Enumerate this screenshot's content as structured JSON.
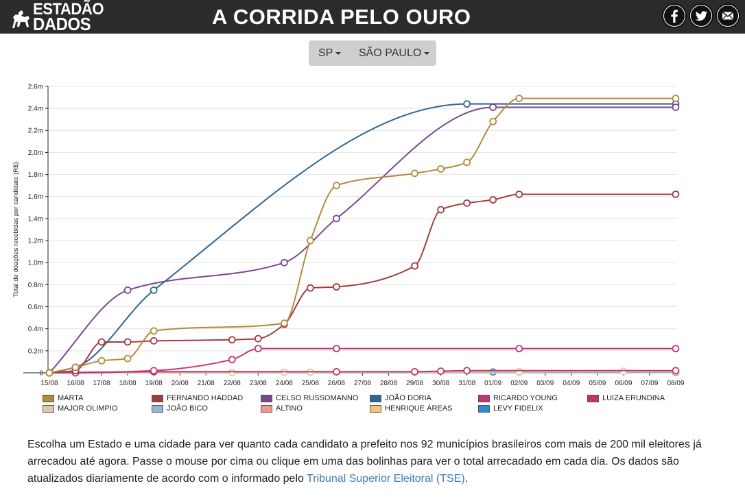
{
  "header": {
    "logo_line1": "ESTADÃO",
    "logo_line2": "DADOS",
    "title": "A CORRIDA PELO OURO",
    "social": [
      "facebook-icon",
      "twitter-icon",
      "email-icon"
    ]
  },
  "selectors": {
    "state": "SP",
    "city": "SÃO PAULO"
  },
  "colors": {
    "header_bg": "#2b2b2d",
    "link": "#3a7ab8"
  },
  "chart_data": {
    "type": "line",
    "ylabel": "Total de doações recebidas por candidato (R$)",
    "xlabel": "",
    "x": [
      "15/08",
      "16/08",
      "17/08",
      "18/08",
      "19/08",
      "20/08",
      "21/08",
      "22/08",
      "23/08",
      "24/08",
      "25/08",
      "26/08",
      "27/08",
      "28/08",
      "29/08",
      "30/08",
      "31/08",
      "01/09",
      "02/09",
      "03/09",
      "04/09",
      "05/09",
      "06/09",
      "07/09",
      "08/09"
    ],
    "yticks": [
      0,
      0.2,
      0.4,
      0.6,
      0.8,
      1.0,
      1.2,
      1.4,
      1.6,
      1.8,
      2.0,
      2.2,
      2.4,
      2.6
    ],
    "ytick_labels": [
      "0",
      "0.2m",
      "0.4m",
      "0.6m",
      "0.8m",
      "1.0m",
      "1.2m",
      "1.4m",
      "1.6m",
      "1.8m",
      "2.0m",
      "2.2m",
      "2.4m",
      "2.6m"
    ],
    "ylim": [
      0,
      2.6
    ],
    "y_unit": "millions R$",
    "grid": true,
    "legend": "bottom",
    "series": [
      {
        "name": "MARTA",
        "color": "#b5893a",
        "points": [
          [
            0,
            0
          ],
          [
            1,
            0.05
          ],
          [
            2,
            0.11
          ],
          [
            3,
            0.13
          ],
          [
            4,
            0.38
          ],
          [
            9,
            0.45
          ],
          [
            10,
            1.2
          ],
          [
            11,
            1.7
          ],
          [
            14,
            1.81
          ],
          [
            15,
            1.85
          ],
          [
            16,
            1.91
          ],
          [
            17,
            2.28
          ],
          [
            18,
            2.49
          ],
          [
            24,
            2.49
          ]
        ]
      },
      {
        "name": "FERNANDO HADDAD",
        "color": "#a23c3f",
        "points": [
          [
            0,
            0
          ],
          [
            1,
            0.02
          ],
          [
            2,
            0.28
          ],
          [
            3,
            0.28
          ],
          [
            4,
            0.29
          ],
          [
            7,
            0.3
          ],
          [
            8,
            0.31
          ],
          [
            9,
            0.44
          ],
          [
            10,
            0.77
          ],
          [
            11,
            0.78
          ],
          [
            14,
            0.97
          ],
          [
            15,
            1.48
          ],
          [
            16,
            1.54
          ],
          [
            17,
            1.57
          ],
          [
            18,
            1.62
          ],
          [
            24,
            1.62
          ]
        ]
      },
      {
        "name": "CELSO RUSSOMANNO",
        "color": "#7a4791",
        "points": [
          [
            0,
            0
          ],
          [
            3,
            0.75
          ],
          [
            9,
            1.0
          ],
          [
            11,
            1.4
          ],
          [
            17,
            2.41
          ],
          [
            24,
            2.41
          ]
        ]
      },
      {
        "name": "JOÃO DORIA",
        "color": "#2f6690",
        "points": [
          [
            0,
            0
          ],
          [
            1,
            0.05
          ],
          [
            4,
            0.75
          ],
          [
            16,
            2.44
          ],
          [
            24,
            2.44
          ]
        ]
      },
      {
        "name": "RICARDO YOUNG",
        "color": "#c2357a",
        "points": [
          [
            0,
            0
          ],
          [
            1,
            0
          ],
          [
            4,
            0.02
          ],
          [
            7,
            0.12
          ],
          [
            8,
            0.22
          ],
          [
            11,
            0.22
          ],
          [
            18,
            0.22
          ],
          [
            24,
            0.22
          ]
        ]
      },
      {
        "name": "LUIZA ERUNDINA",
        "color": "#c7345e",
        "points": [
          [
            0,
            0
          ],
          [
            1,
            0.005
          ],
          [
            4,
            0.01
          ],
          [
            11,
            0.01
          ],
          [
            14,
            0.01
          ],
          [
            15,
            0.015
          ],
          [
            16,
            0.02
          ],
          [
            24,
            0.02
          ]
        ]
      },
      {
        "name": "MAJOR OLIMPIO",
        "color": "#e2c9a6",
        "points": [
          [
            0,
            0
          ],
          [
            7,
            0.003
          ],
          [
            9,
            0.005
          ],
          [
            10,
            0.006
          ],
          [
            18,
            0.01
          ],
          [
            22,
            0.015
          ],
          [
            24,
            0.015
          ]
        ]
      },
      {
        "name": "JOÃO BICO",
        "color": "#90b8d8",
        "points": [
          [
            0,
            0
          ],
          [
            24,
            0.004
          ]
        ]
      },
      {
        "name": "ALTINO",
        "color": "#f2978a",
        "points": [
          [
            0,
            0
          ],
          [
            24,
            0.003
          ]
        ]
      },
      {
        "name": "HENRIQUE ÁREAS",
        "color": "#f6c277",
        "points": [
          [
            0,
            0
          ],
          [
            24,
            0.002
          ]
        ]
      },
      {
        "name": "LEVY FIDELIX",
        "color": "#2b8ecf",
        "points": [
          [
            0,
            0
          ],
          [
            1,
            0.003
          ],
          [
            17,
            0.008
          ],
          [
            18,
            0.008
          ],
          [
            24,
            0.008
          ]
        ]
      }
    ]
  },
  "description": {
    "text": "Escolha um Estado e uma cidade para ver quanto cada candidato a prefeito nos 92 municípios brasileiros com mais de 200 mil eleitores já arrecadou até agora. Passe o mouse por cima ou clique em uma das bolinhas para ver o total arrecadado em cada dia. Os dados são atualizados diariamente de acordo com o informado pelo ",
    "link_text": "Tribunal Superior Eleitoral (TSE)",
    "suffix": "."
  }
}
